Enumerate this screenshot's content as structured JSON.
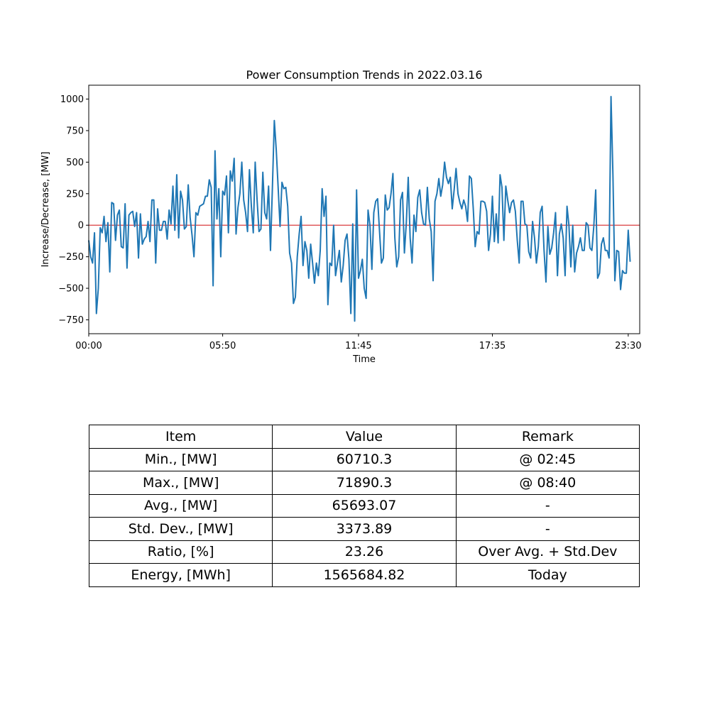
{
  "chart_data": {
    "type": "line",
    "title": "Power Consumption Trends in 2022.03.16",
    "xlabel": "Time",
    "ylabel": "Increase/Decrease, [MW]",
    "x_ticks": [
      "00:00",
      "05:50",
      "11:45",
      "17:35",
      "23:30"
    ],
    "x_tick_indices": [
      0,
      70,
      141,
      211,
      282
    ],
    "y_ticks": [
      1000,
      750,
      500,
      250,
      0,
      -250,
      -500,
      -750
    ],
    "y_tick_labels": [
      "1000",
      "750",
      "500",
      "250",
      "0",
      "−250",
      "−500",
      "−750"
    ],
    "ylim": [
      -860,
      1110
    ],
    "xlim": [
      0,
      288
    ],
    "line_color": "#1f77b4",
    "reference_line": {
      "y": 0,
      "color": "#d62728"
    },
    "series": [
      {
        "name": "Increase/Decrease",
        "values": [
          -120,
          -250,
          -300,
          -60,
          -700,
          -500,
          -20,
          -60,
          70,
          -130,
          20,
          -370,
          180,
          170,
          -120,
          80,
          120,
          -170,
          -180,
          170,
          -340,
          80,
          100,
          110,
          -10,
          100,
          -260,
          90,
          -150,
          -110,
          -90,
          30,
          -130,
          200,
          200,
          -300,
          130,
          -40,
          -40,
          30,
          30,
          -110,
          120,
          10,
          310,
          -40,
          400,
          -100,
          270,
          200,
          -30,
          -10,
          320,
          60,
          -80,
          -250,
          100,
          80,
          150,
          160,
          170,
          230,
          230,
          360,
          300,
          -480,
          590,
          50,
          290,
          -250,
          270,
          240,
          390,
          -60,
          430,
          350,
          530,
          -70,
          140,
          250,
          500,
          200,
          100,
          -50,
          440,
          150,
          -60,
          500,
          200,
          -50,
          -30,
          420,
          100,
          50,
          310,
          -200,
          300,
          830,
          600,
          300,
          -10,
          340,
          290,
          300,
          150,
          -220,
          -300,
          -620,
          -570,
          -250,
          -70,
          70,
          -320,
          -130,
          -200,
          -420,
          -150,
          -300,
          -460,
          -300,
          -400,
          -200,
          290,
          70,
          230,
          -630,
          -300,
          -320,
          0,
          -400,
          -300,
          -200,
          -450,
          -320,
          -120,
          -70,
          -270,
          -700,
          10,
          -760,
          280,
          -420,
          -360,
          -270,
          -500,
          -580,
          120,
          0,
          -350,
          100,
          190,
          210,
          -50,
          -300,
          -260,
          240,
          120,
          140,
          250,
          410,
          -100,
          -330,
          -250,
          200,
          260,
          -220,
          20,
          380,
          -100,
          -300,
          80,
          -50,
          220,
          280,
          100,
          10,
          0,
          300,
          50,
          -50,
          -440,
          190,
          250,
          370,
          230,
          320,
          500,
          380,
          330,
          380,
          130,
          280,
          450,
          250,
          180,
          130,
          200,
          150,
          30,
          390,
          370,
          130,
          -170,
          -50,
          -70,
          190,
          190,
          180,
          110,
          -200,
          -70,
          230,
          -130,
          90,
          -140,
          400,
          300,
          -120,
          310,
          200,
          100,
          180,
          200,
          110,
          -120,
          -300,
          190,
          190,
          10,
          0,
          -210,
          -260,
          30,
          -100,
          -300,
          -170,
          100,
          150,
          -200,
          -450,
          -10,
          -230,
          -180,
          -60,
          100,
          -400,
          -70,
          10,
          -100,
          -400,
          150,
          0,
          -330,
          0,
          -370,
          -220,
          -170,
          -100,
          -200,
          -200,
          20,
          0,
          -180,
          -200,
          -10,
          280,
          -420,
          -380,
          -150,
          -100,
          -200,
          -200,
          -260,
          1020,
          400,
          -440,
          -200,
          -210,
          -510,
          -360,
          -380,
          -380,
          -40,
          -290
        ]
      }
    ]
  },
  "table": {
    "headers": [
      "Item",
      "Value",
      "Remark"
    ],
    "rows": [
      [
        "Min., [MW]",
        "60710.3",
        "@ 02:45"
      ],
      [
        "Max., [MW]",
        "71890.3",
        "@ 08:40"
      ],
      [
        "Avg., [MW]",
        "65693.07",
        "-"
      ],
      [
        "Std. Dev., [MW]",
        "3373.89",
        "-"
      ],
      [
        "Ratio, [%]",
        "23.26",
        "Over Avg. + Std.Dev"
      ],
      [
        "Energy, [MWh]",
        "1565684.82",
        "Today"
      ]
    ]
  }
}
